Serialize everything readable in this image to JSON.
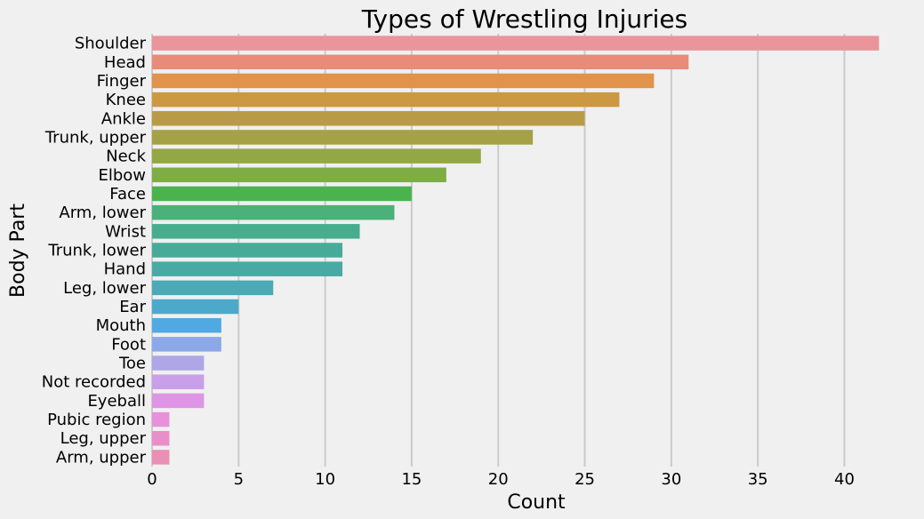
{
  "chart_data": {
    "type": "bar",
    "orientation": "horizontal",
    "title": "Types of Wrestling Injuries",
    "xlabel": "Count",
    "ylabel": "Body Part",
    "xlim": [
      0,
      42.7
    ],
    "xticks": [
      0,
      5,
      10,
      15,
      20,
      25,
      30,
      35,
      40
    ],
    "grid": "vertical",
    "categories": [
      "Shoulder",
      "Head",
      "Finger",
      "Knee",
      "Ankle",
      "Trunk, upper",
      "Neck",
      "Elbow",
      "Face",
      "Arm, lower",
      "Wrist",
      "Trunk, lower",
      "Hand",
      "Leg, lower",
      "Ear",
      "Mouth",
      "Foot",
      "Toe",
      "Not recorded",
      "Eyeball",
      "Pubic region",
      "Leg, upper",
      "Arm, upper"
    ],
    "values": [
      42,
      31,
      29,
      27,
      25,
      22,
      19,
      17,
      15,
      14,
      12,
      11,
      11,
      7,
      5,
      4,
      4,
      3,
      3,
      3,
      1,
      1,
      1
    ],
    "colors": [
      "#ea949c",
      "#e98b7a",
      "#e1924b",
      "#cc9942",
      "#b99b47",
      "#a5a145",
      "#94a745",
      "#7eac45",
      "#4bb34e",
      "#49b179",
      "#47ad8c",
      "#48ab9a",
      "#49a9a5",
      "#4aaab5",
      "#4ca9cb",
      "#51a9e1",
      "#8ca8e8",
      "#afa6e8",
      "#c99fe9",
      "#df95e6",
      "#e890da",
      "#e98ec9",
      "#ea90b7"
    ]
  }
}
